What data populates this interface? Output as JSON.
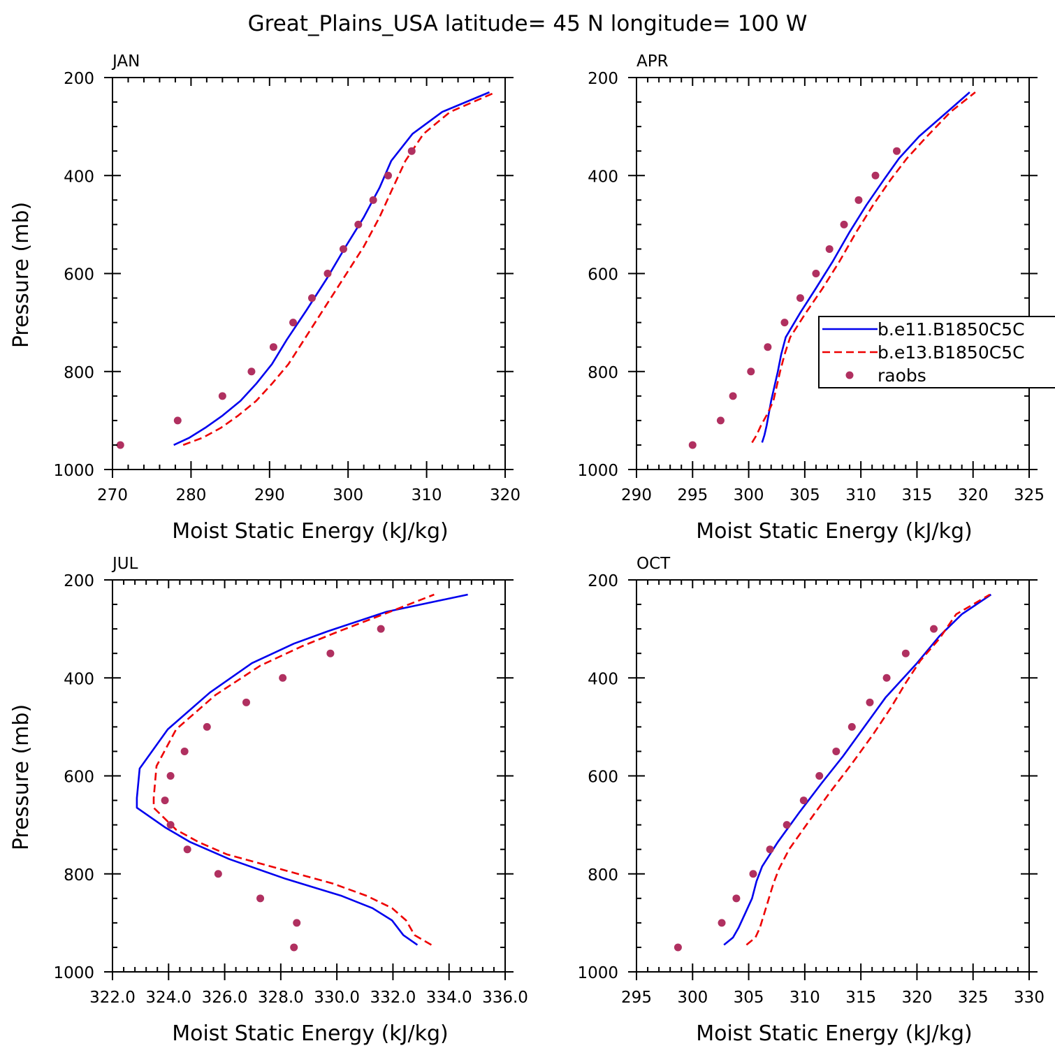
{
  "title": "Great_Plains_USA  latitude= 45 N longitude= 100 W",
  "colors": {
    "model1": "#0000ee",
    "model2": "#ee0000",
    "raobs": "#b03060"
  },
  "chart_data": [
    {
      "type": "line",
      "panel": "JAN",
      "xlabel": "Moist Static Energy (kJ/kg)",
      "ylabel": "Pressure (mb)",
      "xlim": [
        270,
        320
      ],
      "ylim": [
        1000,
        200
      ],
      "x_ticks": [
        270,
        280,
        290,
        300,
        310,
        320
      ],
      "x_tick_labels": [
        "270",
        "280",
        "290",
        "300",
        "310",
        "320"
      ],
      "y_ticks": [
        200,
        400,
        600,
        800,
        1000
      ],
      "y_tick_labels": [
        "200",
        "400",
        "600",
        "800",
        "1000"
      ],
      "series": [
        {
          "style": "solid",
          "color": "#0000ee",
          "points": [
            [
              277.8,
              950
            ],
            [
              279.8,
              935
            ],
            [
              281.8,
              915
            ],
            [
              284.0,
              890
            ],
            [
              286.3,
              860
            ],
            [
              288.3,
              825
            ],
            [
              290.3,
              785
            ],
            [
              292.2,
              735
            ],
            [
              294.7,
              675
            ],
            [
              297.3,
              610
            ],
            [
              299.7,
              545
            ],
            [
              302.0,
              485
            ],
            [
              304.0,
              425
            ],
            [
              305.5,
              370
            ],
            [
              308.2,
              315
            ],
            [
              312.0,
              270
            ],
            [
              318.0,
              230
            ]
          ]
        },
        {
          "style": "dashed",
          "color": "#ee0000",
          "points": [
            [
              279.0,
              950
            ],
            [
              281.5,
              935
            ],
            [
              283.8,
              915
            ],
            [
              286.0,
              890
            ],
            [
              288.3,
              860
            ],
            [
              290.3,
              825
            ],
            [
              292.4,
              785
            ],
            [
              294.4,
              735
            ],
            [
              296.8,
              675
            ],
            [
              299.4,
              610
            ],
            [
              302.0,
              545
            ],
            [
              304.0,
              485
            ],
            [
              305.7,
              425
            ],
            [
              307.3,
              370
            ],
            [
              309.6,
              315
            ],
            [
              313.0,
              270
            ],
            [
              318.8,
              230
            ]
          ]
        },
        {
          "name": "raobs",
          "style": "markers",
          "color": "#b03060",
          "points": [
            [
              271.0,
              950
            ],
            [
              278.3,
              900
            ],
            [
              284.0,
              850
            ],
            [
              287.7,
              800
            ],
            [
              290.5,
              750
            ],
            [
              293.0,
              700
            ],
            [
              295.4,
              650
            ],
            [
              297.4,
              600
            ],
            [
              299.4,
              550
            ],
            [
              301.3,
              500
            ],
            [
              303.2,
              450
            ],
            [
              305.1,
              400
            ],
            [
              308.1,
              350
            ]
          ]
        }
      ]
    },
    {
      "type": "line",
      "panel": "APR",
      "xlabel": "Moist Static Energy (kJ/kg)",
      "ylabel": "",
      "xlim": [
        290,
        325
      ],
      "ylim": [
        1000,
        200
      ],
      "x_ticks": [
        290,
        295,
        300,
        305,
        310,
        315,
        320,
        325
      ],
      "x_tick_labels": [
        "290",
        "295",
        "300",
        "305",
        "310",
        "315",
        "320",
        "325"
      ],
      "y_ticks": [
        200,
        400,
        600,
        800,
        1000
      ],
      "y_tick_labels": [
        "200",
        "400",
        "600",
        "800",
        "1000"
      ],
      "legend": {
        "position": "right",
        "entries": [
          {
            "name": "b.e11.B1850C5C",
            "style": "solid",
            "color": "#0000ee"
          },
          {
            "name": "b.e13.B1850C5C",
            "style": "dashed",
            "color": "#ee0000"
          },
          {
            "name": "raobs",
            "style": "markers",
            "color": "#b03060"
          }
        ]
      },
      "series": [
        {
          "name": "b.e11.B1850C5C",
          "style": "solid",
          "color": "#0000ee",
          "points": [
            [
              301.2,
              945
            ],
            [
              301.4,
              930
            ],
            [
              301.6,
              910
            ],
            [
              301.8,
              885
            ],
            [
              302.0,
              860
            ],
            [
              302.3,
              830
            ],
            [
              302.6,
              800
            ],
            [
              302.9,
              765
            ],
            [
              303.3,
              730
            ],
            [
              304.6,
              680
            ],
            [
              306.0,
              630
            ],
            [
              307.5,
              575
            ],
            [
              309.0,
              515
            ],
            [
              310.5,
              460
            ],
            [
              312.0,
              410
            ],
            [
              313.4,
              365
            ],
            [
              315.2,
              320
            ],
            [
              317.7,
              270
            ],
            [
              319.7,
              230
            ]
          ]
        },
        {
          "name": "b.e13.B1850C5C",
          "style": "dashed",
          "color": "#ee0000",
          "points": [
            [
              300.3,
              945
            ],
            [
              300.7,
              930
            ],
            [
              301.1,
              910
            ],
            [
              301.7,
              885
            ],
            [
              302.2,
              860
            ],
            [
              302.5,
              830
            ],
            [
              302.8,
              800
            ],
            [
              303.2,
              765
            ],
            [
              303.7,
              730
            ],
            [
              305.1,
              680
            ],
            [
              306.6,
              630
            ],
            [
              308.1,
              575
            ],
            [
              309.6,
              515
            ],
            [
              311.1,
              460
            ],
            [
              312.6,
              410
            ],
            [
              314.1,
              365
            ],
            [
              315.9,
              320
            ],
            [
              318.0,
              270
            ],
            [
              320.2,
              230
            ]
          ]
        },
        {
          "name": "raobs",
          "style": "markers",
          "color": "#b03060",
          "points": [
            [
              295.0,
              950
            ],
            [
              297.5,
              900
            ],
            [
              298.6,
              850
            ],
            [
              300.2,
              800
            ],
            [
              301.7,
              750
            ],
            [
              303.2,
              700
            ],
            [
              304.6,
              650
            ],
            [
              306.0,
              600
            ],
            [
              307.2,
              550
            ],
            [
              308.5,
              500
            ],
            [
              309.8,
              450
            ],
            [
              311.3,
              400
            ],
            [
              313.2,
              350
            ]
          ]
        }
      ]
    },
    {
      "type": "line",
      "panel": "JUL",
      "xlabel": "Moist Static Energy (kJ/kg)",
      "ylabel": "Pressure (mb)",
      "xlim": [
        322.03,
        336.03
      ],
      "ylim": [
        1000,
        200
      ],
      "x_ticks": [
        322.03,
        324.03,
        326.03,
        328.03,
        330.03,
        332.03,
        334.03,
        336.03
      ],
      "x_tick_labels": [
        "322.0",
        "324.0",
        "326.0",
        "328.0",
        "330.0",
        "332.0",
        "334.0",
        "336.0"
      ],
      "y_ticks": [
        200,
        400,
        600,
        800,
        1000
      ],
      "y_tick_labels": [
        "200",
        "400",
        "600",
        "800",
        "1000"
      ],
      "series": [
        {
          "style": "solid",
          "color": "#0000ee",
          "points": [
            [
              332.9,
              945
            ],
            [
              332.4,
              925
            ],
            [
              332.0,
              895
            ],
            [
              331.3,
              870
            ],
            [
              330.2,
              845
            ],
            [
              328.2,
              810
            ],
            [
              326.2,
              770
            ],
            [
              324.8,
              735
            ],
            [
              323.9,
              705
            ],
            [
              322.9,
              665
            ],
            [
              322.9,
              645
            ],
            [
              323.0,
              585
            ],
            [
              324.0,
              505
            ],
            [
              325.5,
              430
            ],
            [
              327.0,
              370
            ],
            [
              328.5,
              330
            ],
            [
              329.7,
              305
            ],
            [
              331.8,
              265
            ],
            [
              334.7,
              230
            ]
          ]
        },
        {
          "style": "dashed",
          "color": "#ee0000",
          "points": [
            [
              333.4,
              945
            ],
            [
              332.8,
              925
            ],
            [
              332.5,
              895
            ],
            [
              332.0,
              870
            ],
            [
              331.1,
              845
            ],
            [
              329.9,
              820
            ],
            [
              328.0,
              790
            ],
            [
              326.1,
              760
            ],
            [
              325.1,
              735
            ],
            [
              324.3,
              710
            ],
            [
              323.5,
              665
            ],
            [
              323.5,
              645
            ],
            [
              323.6,
              580
            ],
            [
              324.3,
              505
            ],
            [
              325.7,
              435
            ],
            [
              327.3,
              375
            ],
            [
              328.8,
              335
            ],
            [
              330.1,
              305
            ],
            [
              331.7,
              270
            ],
            [
              333.5,
              230
            ]
          ]
        },
        {
          "name": "raobs",
          "style": "markers",
          "color": "#b03060",
          "points": [
            [
              328.5,
              950
            ],
            [
              328.6,
              900
            ],
            [
              327.3,
              850
            ],
            [
              325.8,
              800
            ],
            [
              324.7,
              750
            ],
            [
              324.1,
              700
            ],
            [
              323.9,
              650
            ],
            [
              324.1,
              600
            ],
            [
              324.6,
              550
            ],
            [
              325.4,
              500
            ],
            [
              326.8,
              450
            ],
            [
              328.1,
              400
            ],
            [
              329.8,
              350
            ],
            [
              331.6,
              300
            ]
          ]
        }
      ]
    },
    {
      "type": "line",
      "panel": "OCT",
      "xlabel": "Moist Static Energy (kJ/kg)",
      "ylabel": "",
      "xlim": [
        295,
        330
      ],
      "ylim": [
        1000,
        200
      ],
      "x_ticks": [
        295,
        300,
        305,
        310,
        315,
        320,
        325,
        330
      ],
      "x_tick_labels": [
        "295",
        "300",
        "305",
        "310",
        "315",
        "320",
        "325",
        "330"
      ],
      "y_ticks": [
        200,
        400,
        600,
        800,
        1000
      ],
      "y_tick_labels": [
        "200",
        "400",
        "600",
        "800",
        "1000"
      ],
      "series": [
        {
          "style": "solid",
          "color": "#0000ee",
          "points": [
            [
              302.8,
              945
            ],
            [
              303.6,
              930
            ],
            [
              304.1,
              910
            ],
            [
              304.7,
              880
            ],
            [
              305.3,
              850
            ],
            [
              305.7,
              815
            ],
            [
              306.2,
              785
            ],
            [
              307.6,
              735
            ],
            [
              309.5,
              675
            ],
            [
              311.5,
              615
            ],
            [
              313.4,
              560
            ],
            [
              315.3,
              500
            ],
            [
              317.2,
              440
            ],
            [
              318.8,
              400
            ],
            [
              320.0,
              370
            ],
            [
              322.0,
              315
            ],
            [
              324.0,
              270
            ],
            [
              326.6,
              230
            ]
          ]
        },
        {
          "style": "dashed",
          "color": "#ee0000",
          "points": [
            [
              304.8,
              945
            ],
            [
              305.6,
              930
            ],
            [
              306.0,
              910
            ],
            [
              306.4,
              880
            ],
            [
              306.8,
              850
            ],
            [
              307.2,
              820
            ],
            [
              307.7,
              790
            ],
            [
              308.6,
              750
            ],
            [
              310.3,
              695
            ],
            [
              312.2,
              635
            ],
            [
              314.2,
              575
            ],
            [
              316.1,
              515
            ],
            [
              317.7,
              460
            ],
            [
              319.0,
              410
            ],
            [
              320.3,
              365
            ],
            [
              322.0,
              320
            ],
            [
              323.5,
              270
            ],
            [
              326.5,
              230
            ]
          ]
        },
        {
          "name": "raobs",
          "style": "markers",
          "color": "#b03060",
          "points": [
            [
              298.7,
              950
            ],
            [
              302.6,
              900
            ],
            [
              303.9,
              850
            ],
            [
              305.4,
              800
            ],
            [
              306.9,
              750
            ],
            [
              308.4,
              700
            ],
            [
              309.9,
              650
            ],
            [
              311.3,
              600
            ],
            [
              312.8,
              550
            ],
            [
              314.2,
              500
            ],
            [
              315.8,
              450
            ],
            [
              317.3,
              400
            ],
            [
              319.0,
              350
            ],
            [
              321.5,
              300
            ]
          ]
        }
      ]
    }
  ]
}
